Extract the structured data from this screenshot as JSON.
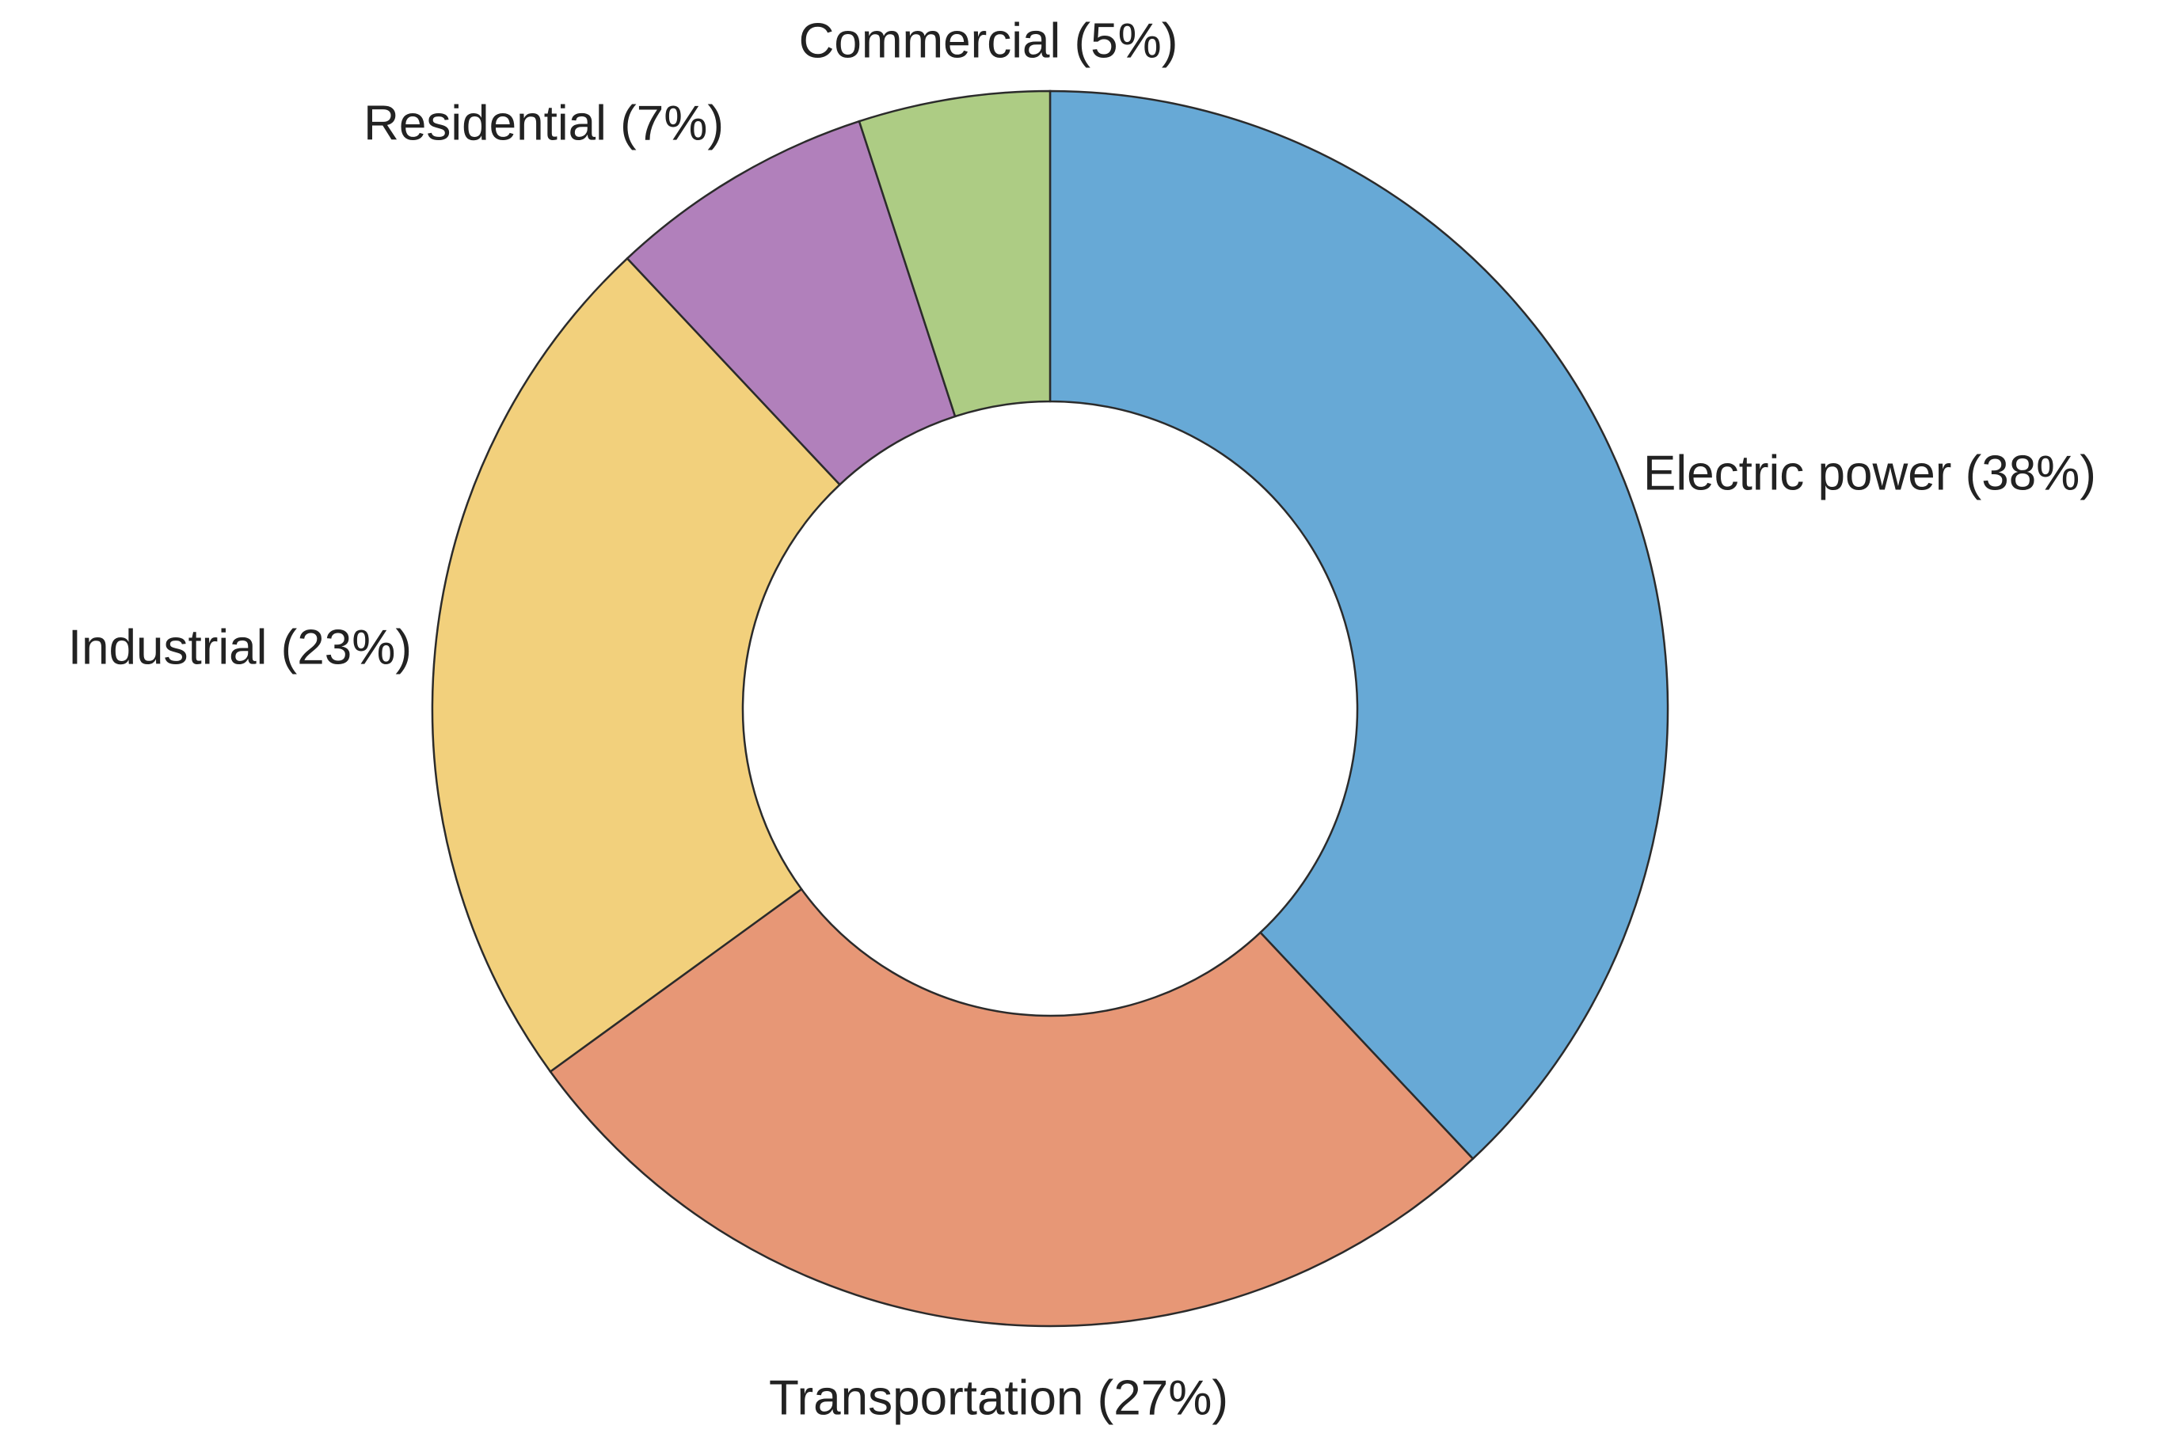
{
  "chart_data": {
    "type": "pie",
    "donut": true,
    "categories": [
      "Electric power",
      "Transportation",
      "Industrial",
      "Residential",
      "Commercial"
    ],
    "values": [
      38,
      27,
      23,
      7,
      5
    ],
    "labels": [
      "Electric power (38%)",
      "Transportation (27%)",
      "Industrial (23%)",
      "Residential (7%)",
      "Commercial (5%)"
    ],
    "colors": [
      "#67a9d6",
      "#e79776",
      "#f2d07c",
      "#b180bb",
      "#adcc84"
    ],
    "start": "12 o'clock",
    "direction": "clockwise",
    "legend": "none"
  }
}
